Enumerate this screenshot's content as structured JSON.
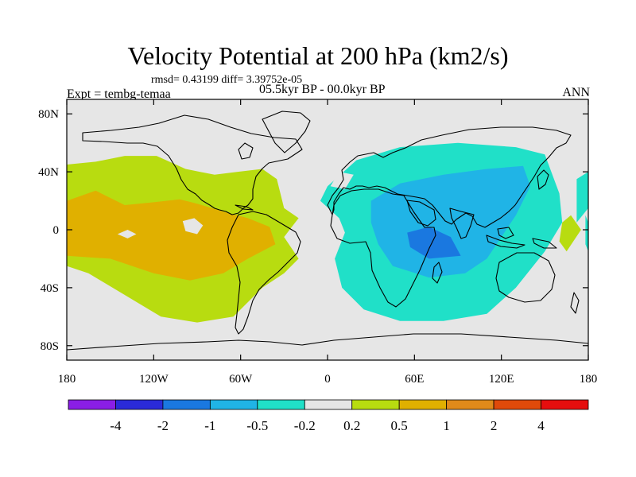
{
  "chart_data": {
    "type": "heatmap",
    "title": "Velocity Potential at 200 hPa (km2/s)",
    "stats": "rmsd= 0.43199  diff= 3.39752e-05",
    "experiment": "Expt = tembg-temaa",
    "period": "05.5kyr BP - 00.0kyr BP",
    "season": "ANN",
    "xlim": [
      -180,
      180
    ],
    "ylim": [
      -90,
      90
    ],
    "xticks": [
      {
        "value": -180,
        "label": "180"
      },
      {
        "value": -120,
        "label": "120W"
      },
      {
        "value": -60,
        "label": "60W"
      },
      {
        "value": 0,
        "label": "0"
      },
      {
        "value": 60,
        "label": "60E"
      },
      {
        "value": 120,
        "label": "120E"
      },
      {
        "value": 180,
        "label": "180"
      }
    ],
    "yticks": [
      {
        "value": 80,
        "label": "80N"
      },
      {
        "value": 40,
        "label": "40N"
      },
      {
        "value": 0,
        "label": "0"
      },
      {
        "value": -40,
        "label": "40S"
      },
      {
        "value": -80,
        "label": "80S"
      }
    ],
    "colorbar": {
      "colors": [
        "#8a1ee6",
        "#2a2ad8",
        "#1a78e0",
        "#20b4e6",
        "#20e0c8",
        "#e6e6e6",
        "#b8dc10",
        "#e0b000",
        "#e08a1a",
        "#e04a0a",
        "#e60e0e"
      ],
      "labels": [
        "-4",
        "-2",
        "-1",
        "-0.5",
        "-0.2",
        "0.2",
        "0.5",
        "1",
        "2",
        "4"
      ]
    },
    "regions": [
      {
        "level": 6,
        "points": [
          [
            -180,
            45
          ],
          [
            -160,
            47
          ],
          [
            -140,
            51
          ],
          [
            -118,
            51
          ],
          [
            -98,
            42
          ],
          [
            -78,
            38
          ],
          [
            -62,
            40
          ],
          [
            -45,
            42
          ],
          [
            -35,
            35
          ],
          [
            -30,
            15
          ],
          [
            -20,
            8
          ],
          [
            -30,
            -5
          ],
          [
            -20,
            -20
          ],
          [
            -30,
            -30
          ],
          [
            -45,
            -40
          ],
          [
            -65,
            -60
          ],
          [
            -90,
            -64
          ],
          [
            -115,
            -60
          ],
          [
            -140,
            -45
          ],
          [
            -165,
            -30
          ],
          [
            -180,
            -25
          ]
        ]
      },
      {
        "level": 7,
        "points": [
          [
            -180,
            20
          ],
          [
            -160,
            27
          ],
          [
            -140,
            17
          ],
          [
            -120,
            19
          ],
          [
            -102,
            21
          ],
          [
            -90,
            18
          ],
          [
            -70,
            12
          ],
          [
            -55,
            8
          ],
          [
            -40,
            2
          ],
          [
            -36,
            -10
          ],
          [
            -55,
            -20
          ],
          [
            -72,
            -30
          ],
          [
            -95,
            -35
          ],
          [
            -120,
            -30
          ],
          [
            -150,
            -20
          ],
          [
            -180,
            -18
          ]
        ]
      },
      {
        "level": 5,
        "points": [
          [
            -145,
            -3
          ],
          [
            -138,
            0
          ],
          [
            -132,
            -3
          ],
          [
            -138,
            -6
          ]
        ]
      },
      {
        "level": 5,
        "points": [
          [
            -100,
            6
          ],
          [
            -92,
            8
          ],
          [
            -86,
            3
          ],
          [
            -90,
            -3
          ],
          [
            -98,
            -1
          ]
        ]
      },
      {
        "level": 5,
        "points": [
          [
            -6,
            0
          ],
          [
            -2,
            2
          ],
          [
            2,
            0
          ],
          [
            -2,
            -2
          ]
        ]
      },
      {
        "level": 4,
        "points": [
          [
            0,
            30
          ],
          [
            20,
            48
          ],
          [
            50,
            57
          ],
          [
            90,
            60
          ],
          [
            130,
            57
          ],
          [
            150,
            52
          ],
          [
            160,
            25
          ],
          [
            162,
            5
          ],
          [
            150,
            -15
          ],
          [
            130,
            -40
          ],
          [
            110,
            -58
          ],
          [
            80,
            -63
          ],
          [
            50,
            -63
          ],
          [
            25,
            -55
          ],
          [
            10,
            -40
          ],
          [
            5,
            -20
          ],
          [
            12,
            -2
          ],
          [
            8,
            8
          ],
          [
            -5,
            20
          ]
        ]
      },
      {
        "level": 3,
        "points": [
          [
            30,
            20
          ],
          [
            50,
            32
          ],
          [
            80,
            38
          ],
          [
            110,
            42
          ],
          [
            135,
            44
          ],
          [
            140,
            30
          ],
          [
            130,
            10
          ],
          [
            120,
            -5
          ],
          [
            110,
            -20
          ],
          [
            95,
            -30
          ],
          [
            70,
            -33
          ],
          [
            45,
            -25
          ],
          [
            35,
            -10
          ],
          [
            30,
            5
          ]
        ]
      },
      {
        "level": 2,
        "points": [
          [
            55,
            -2
          ],
          [
            70,
            2
          ],
          [
            85,
            -5
          ],
          [
            92,
            -18
          ],
          [
            70,
            -20
          ],
          [
            57,
            -12
          ]
        ]
      },
      {
        "level": 5,
        "points": [
          [
            2,
            30
          ],
          [
            8,
            40
          ],
          [
            18,
            38
          ],
          [
            12,
            28
          ]
        ]
      },
      {
        "level": 4,
        "points": [
          [
            178,
            10
          ],
          [
            180,
            5
          ],
          [
            180,
            -15
          ],
          [
            178,
            -10
          ]
        ]
      },
      {
        "level": 7,
        "points": [
          [
            -180,
            7
          ],
          [
            -176,
            8
          ],
          [
            -176,
            -2
          ],
          [
            -180,
            -4
          ]
        ]
      },
      {
        "level": 4,
        "points": [
          [
            172,
            5
          ],
          [
            172,
            35
          ],
          [
            180,
            40
          ],
          [
            180,
            15
          ]
        ]
      },
      {
        "level": 6,
        "points": [
          [
            162,
            5
          ],
          [
            168,
            10
          ],
          [
            175,
            0
          ],
          [
            165,
            -15
          ],
          [
            160,
            -8
          ]
        ]
      }
    ]
  }
}
